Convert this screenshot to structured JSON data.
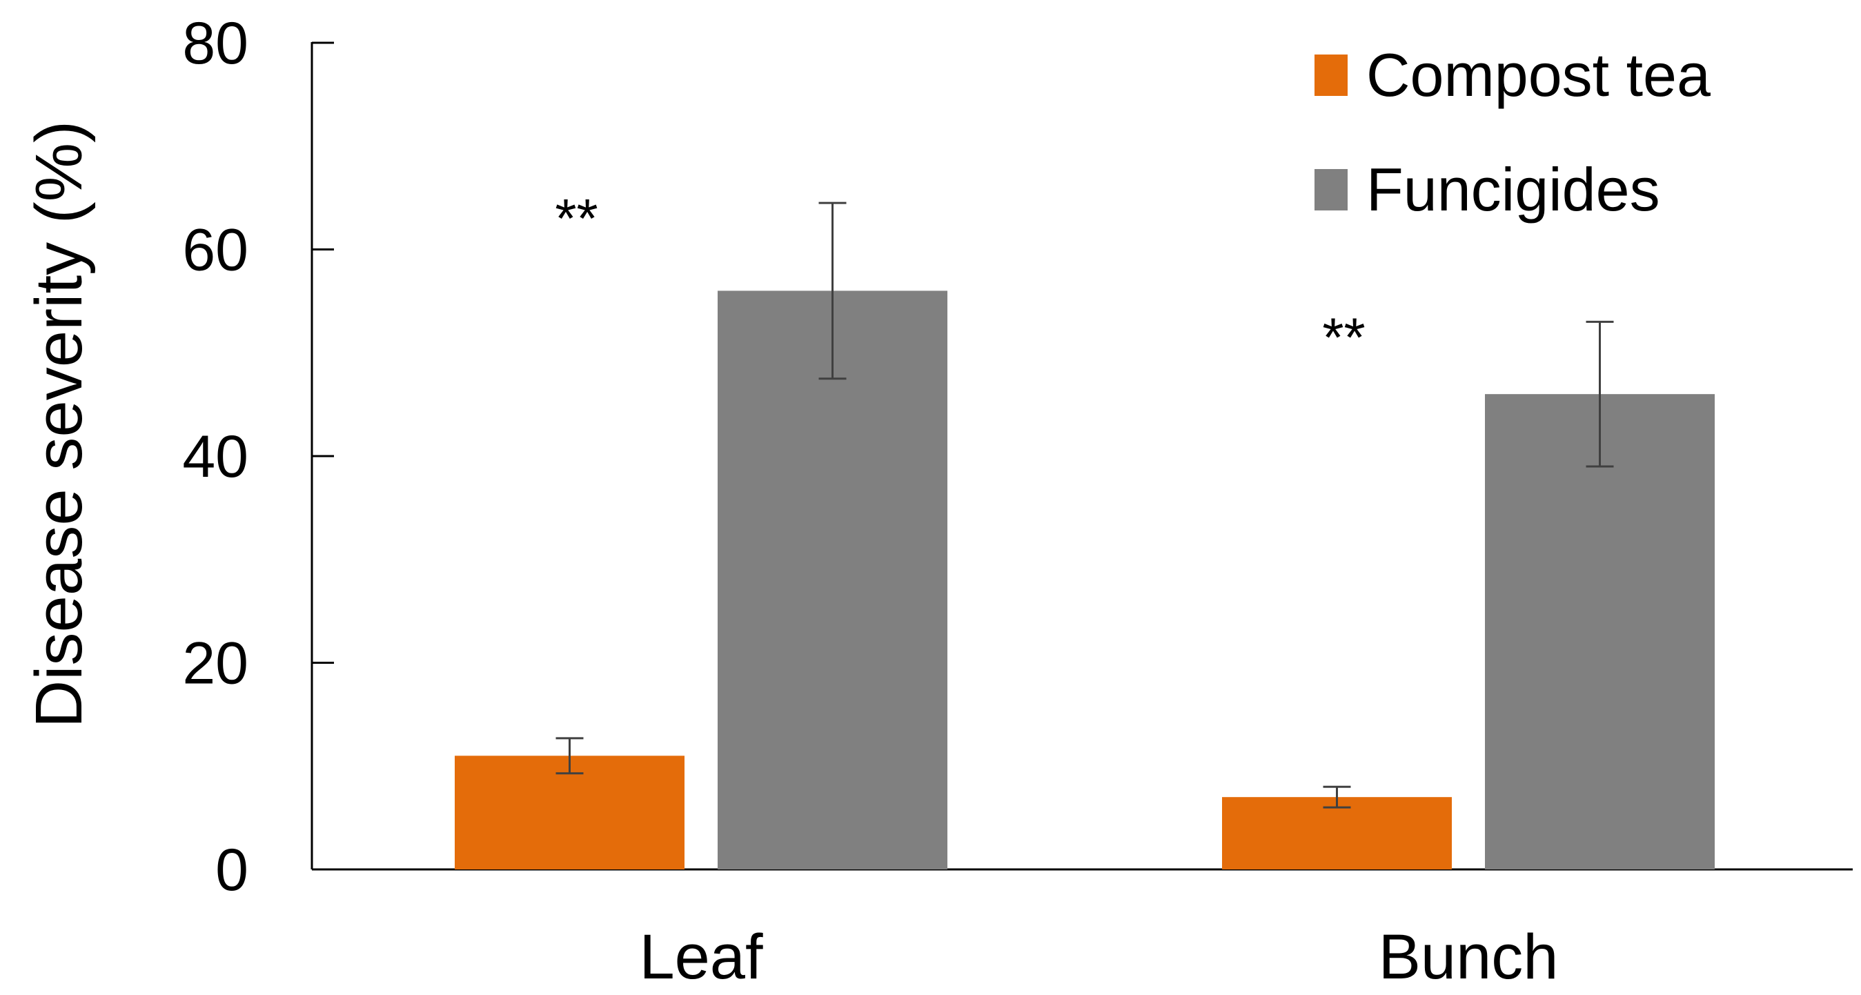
{
  "chart_data": {
    "type": "bar",
    "title": "",
    "xlabel": "",
    "ylabel": "Disease severity (%)",
    "ylim": [
      0,
      80
    ],
    "yticks": [
      0,
      20,
      40,
      60,
      80
    ],
    "grid": false,
    "legend_position": "top-right",
    "categories": [
      "Leaf",
      "Bunch"
    ],
    "series": [
      {
        "name": "Compost tea",
        "color": "#E46C0A",
        "values": [
          11,
          7
        ],
        "errors": [
          1.7,
          1.0
        ]
      },
      {
        "name": "Funcigides",
        "color": "#808080",
        "values": [
          56,
          46
        ],
        "errors": [
          8.5,
          7.0
        ]
      }
    ],
    "annotations": [
      {
        "category_index": 0,
        "text": "**"
      },
      {
        "category_index": 1,
        "text": "**"
      }
    ]
  }
}
